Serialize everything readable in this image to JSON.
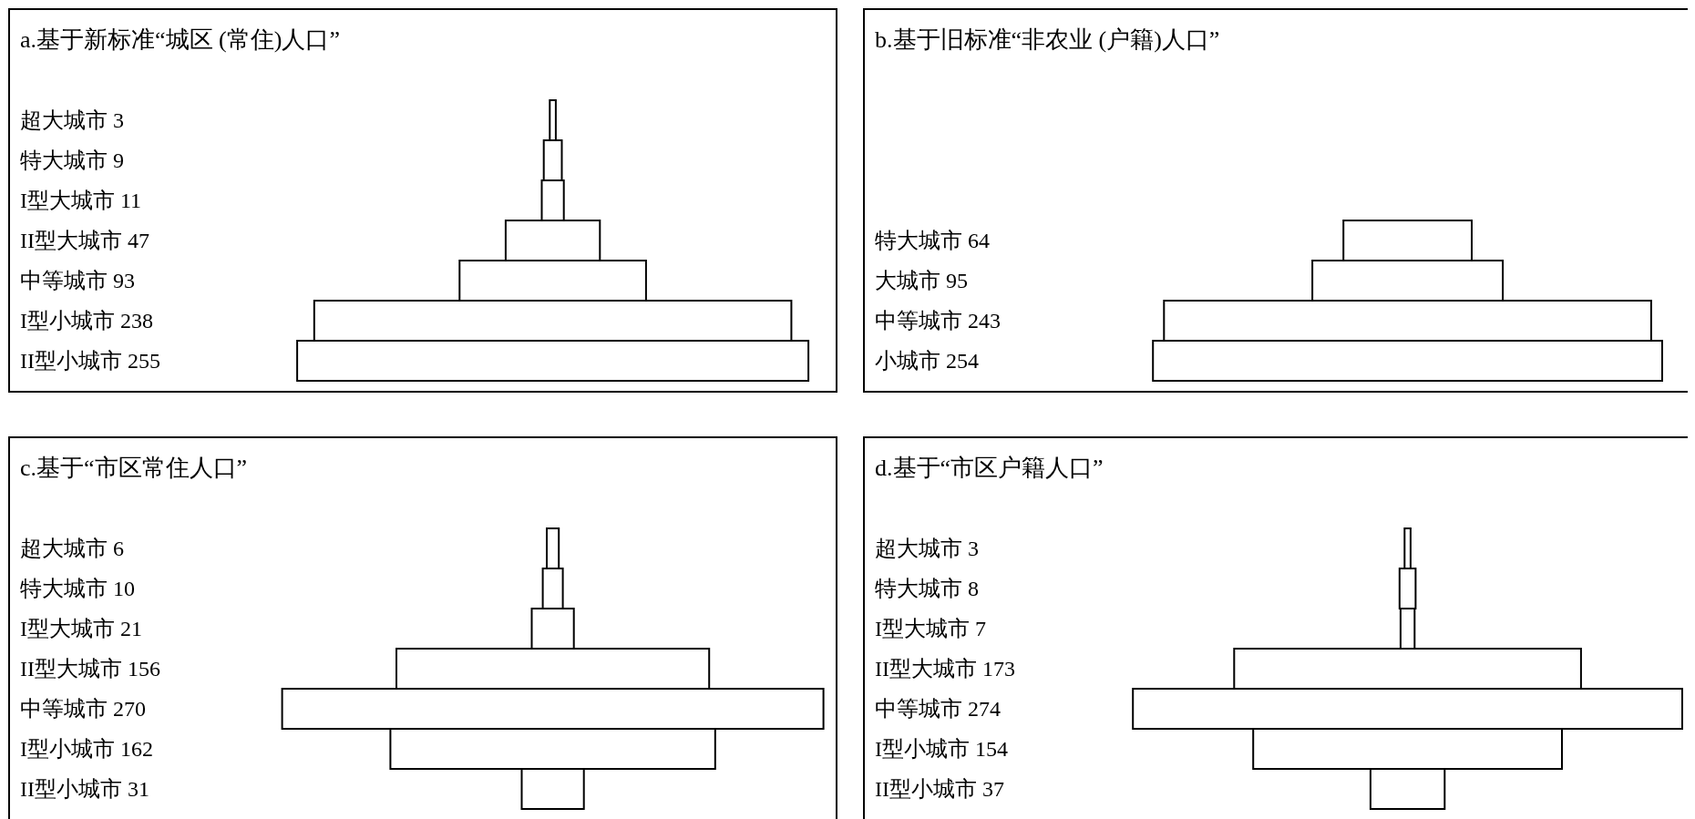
{
  "chart_data": [
    {
      "type": "other",
      "title": "a.基于新标准“城区 (常住)人口”",
      "categories": [
        "超大城市",
        "特大城市",
        "I型大城市",
        "II型大城市",
        "中等城市",
        "I型小城市",
        "II型小城市"
      ],
      "values": [
        3,
        9,
        11,
        47,
        93,
        238,
        255
      ],
      "color": "#ffffff",
      "data_labels": true
    },
    {
      "type": "other",
      "title": "b.基于旧标准“非农业 (户籍)人口”",
      "categories": [
        "特大城市",
        "大城市",
        "中等城市",
        "小城市"
      ],
      "values": [
        64,
        95,
        243,
        254
      ],
      "color": "#ffffff",
      "data_labels": true
    },
    {
      "type": "other",
      "title": "c.基于“市区常住人口”",
      "categories": [
        "超大城市",
        "特大城市",
        "I型大城市",
        "II型大城市",
        "中等城市",
        "I型小城市",
        "II型小城市"
      ],
      "values": [
        6,
        10,
        21,
        156,
        270,
        162,
        31
      ],
      "color": "#ffffff",
      "data_labels": true
    },
    {
      "type": "other",
      "title": "d.基于“市区户籍人口”",
      "categories": [
        "超大城市",
        "特大城市",
        "I型大城市",
        "II型大城市",
        "中等城市",
        "I型小城市",
        "II型小城市"
      ],
      "values": [
        3,
        8,
        7,
        173,
        274,
        154,
        37
      ],
      "color": "#ffffff",
      "data_labels": true
    }
  ]
}
